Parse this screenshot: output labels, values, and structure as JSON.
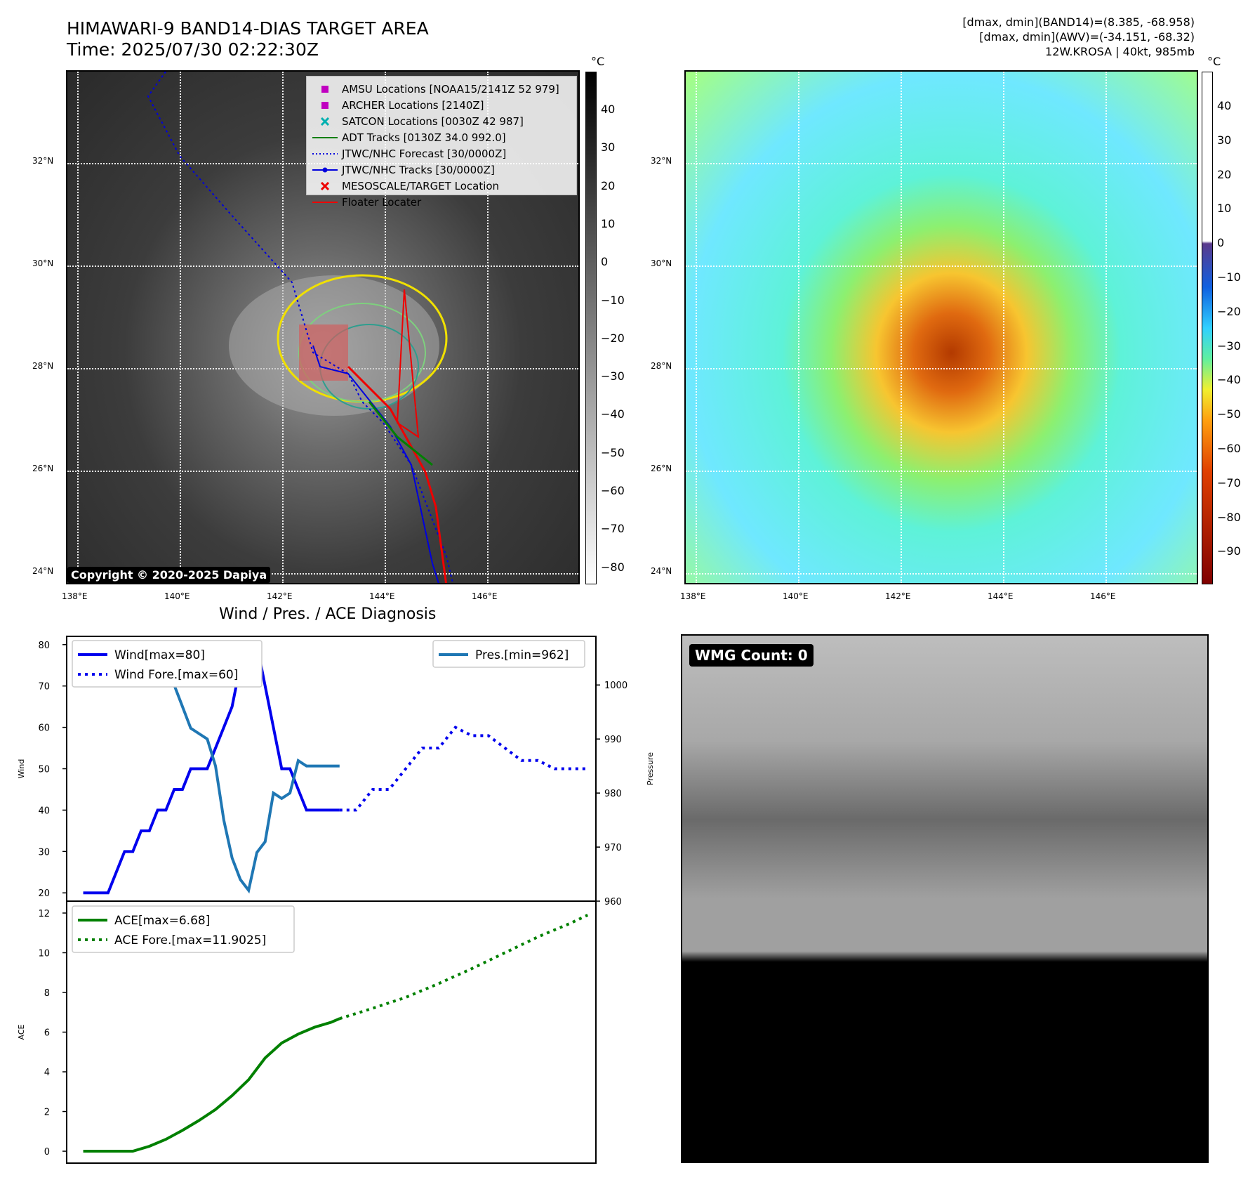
{
  "header": {
    "title_line1": "HIMAWARI-9 BAND14-DIAS TARGET AREA",
    "title_line2": "Time: 2025/07/30 02:22:30Z",
    "info_line1": "[dmax, dmin](BAND14)=(8.385, -68.958)",
    "info_line2": "[dmax, dmin](AWV)=(-34.151, -68.32)",
    "info_line3": "12W.KROSA | 40kt, 985mb"
  },
  "map_left": {
    "lat_labels": [
      "32°N",
      "30°N",
      "28°N",
      "26°N",
      "24°N"
    ],
    "lon_labels": [
      "138°E",
      "140°E",
      "142°E",
      "144°E",
      "146°E"
    ],
    "legend": [
      {
        "label": "AMSU Locations [NOAA15/2141Z 52 979]",
        "symbol": "square",
        "color": "#c000c0"
      },
      {
        "label": "ARCHER Locations [2140Z]",
        "symbol": "square",
        "color": "#c000c0"
      },
      {
        "label": "SATCON Locations [0030Z 42 987]",
        "symbol": "x",
        "color": "#00b0b0"
      },
      {
        "label": "ADT Tracks [0130Z 34.0 992.0]",
        "symbol": "line",
        "color": "#008000"
      },
      {
        "label": "JTWC/NHC Forecast [30/0000Z]",
        "symbol": "dotted",
        "color": "#0000dd"
      },
      {
        "label": "JTWC/NHC Tracks [30/0000Z]",
        "symbol": "linedot",
        "color": "#0000dd"
      },
      {
        "label": "MESOSCALE/TARGET Location",
        "symbol": "x",
        "color": "#ee0000"
      },
      {
        "label": "Floater Locater",
        "symbol": "line",
        "color": "#ee0000"
      }
    ],
    "copyright": "Copyright © 2020-2025 Dapiya",
    "colorbar_unit": "°C",
    "colorbar_ticks": [
      "40",
      "30",
      "20",
      "10",
      "0",
      "−10",
      "−20",
      "−30",
      "−40",
      "−50",
      "−60",
      "−70",
      "−80"
    ]
  },
  "map_right": {
    "lat_labels": [
      "32°N",
      "30°N",
      "28°N",
      "26°N",
      "24°N"
    ],
    "lon_labels": [
      "138°E",
      "140°E",
      "142°E",
      "144°E",
      "146°E"
    ],
    "colorbar_unit": "°C",
    "colorbar_ticks": [
      "40",
      "30",
      "20",
      "10",
      "0",
      "−10",
      "−20",
      "−30",
      "−40",
      "−50",
      "−60",
      "−70",
      "−80",
      "−90"
    ]
  },
  "wmg": {
    "label": "WMG Count: 0"
  },
  "chart_data": [
    {
      "type": "line",
      "title": "Wind / Pres. / ACE Diagnosis",
      "ylabel": "Wind",
      "ylim": [
        18,
        82
      ],
      "yticks": [
        20,
        30,
        40,
        50,
        60,
        70,
        80
      ],
      "series": [
        {
          "name": "Wind[max=80]",
          "style": "solid",
          "color": "#0000ee",
          "x": [
            0,
            1,
            2,
            3,
            4,
            5,
            6,
            7,
            8,
            9,
            10,
            11,
            12,
            13,
            14,
            15,
            16,
            17,
            18,
            19,
            20,
            21,
            22,
            23,
            24,
            25,
            26,
            27,
            28,
            29,
            30,
            31
          ],
          "y": [
            20,
            20,
            20,
            20,
            25,
            30,
            30,
            35,
            35,
            40,
            40,
            45,
            45,
            50,
            50,
            50,
            55,
            60,
            65,
            75,
            80,
            80,
            70,
            60,
            50,
            50,
            45,
            40,
            40,
            40,
            40,
            40
          ]
        },
        {
          "name": "Wind Fore.[max=60]",
          "style": "dotted",
          "color": "#0000ee",
          "x": [
            31,
            33,
            35,
            37,
            39,
            41,
            43,
            45,
            47,
            49,
            51,
            53,
            55,
            57,
            59,
            61
          ],
          "y": [
            40,
            40,
            45,
            45,
            50,
            55,
            55,
            60,
            58,
            58,
            55,
            52,
            52,
            50,
            50,
            50
          ]
        }
      ]
    },
    {
      "type": "line",
      "ylabel": "Pressure",
      "ylim": [
        960,
        1009
      ],
      "yticks": [
        960,
        970,
        980,
        990,
        1000
      ],
      "series": [
        {
          "name": "Pres.[min=962]",
          "style": "solid",
          "color": "#1f77b4",
          "x": [
            0,
            1,
            2,
            3,
            4,
            5,
            6,
            7,
            8,
            9,
            10,
            11,
            12,
            13,
            14,
            15,
            16,
            17,
            18,
            19,
            20,
            21,
            22,
            23,
            24,
            25,
            26,
            27,
            28,
            29,
            30,
            31
          ],
          "y": [
            1007,
            1007,
            1007,
            1005,
            1005,
            1004,
            1004,
            1002,
            1002,
            1000,
            1000,
            1000,
            996,
            992,
            991,
            990,
            985,
            975,
            968,
            964,
            962,
            969,
            971,
            980,
            979,
            980,
            986,
            985,
            985,
            985,
            985,
            985
          ]
        }
      ]
    },
    {
      "type": "line",
      "ylabel": "ACE",
      "ylim": [
        -0.6,
        12.6
      ],
      "yticks": [
        0,
        2,
        4,
        6,
        8,
        10,
        12
      ],
      "series": [
        {
          "name": "ACE[max=6.68]",
          "style": "solid",
          "color": "#008000",
          "x": [
            0,
            2,
            4,
            6,
            8,
            10,
            12,
            14,
            16,
            18,
            20,
            22,
            24,
            26,
            28,
            30,
            31
          ],
          "y": [
            0,
            0,
            0,
            0,
            0.25,
            0.6,
            1.05,
            1.55,
            2.1,
            2.8,
            3.6,
            4.7,
            5.45,
            5.9,
            6.25,
            6.5,
            6.68
          ]
        },
        {
          "name": "ACE Fore.[max=11.9025]",
          "style": "dotted",
          "color": "#008000",
          "x": [
            31,
            35,
            39,
            43,
            47,
            51,
            55,
            59,
            61
          ],
          "y": [
            6.68,
            7.2,
            7.75,
            8.45,
            9.2,
            10.0,
            10.8,
            11.5,
            11.9
          ]
        }
      ]
    }
  ]
}
